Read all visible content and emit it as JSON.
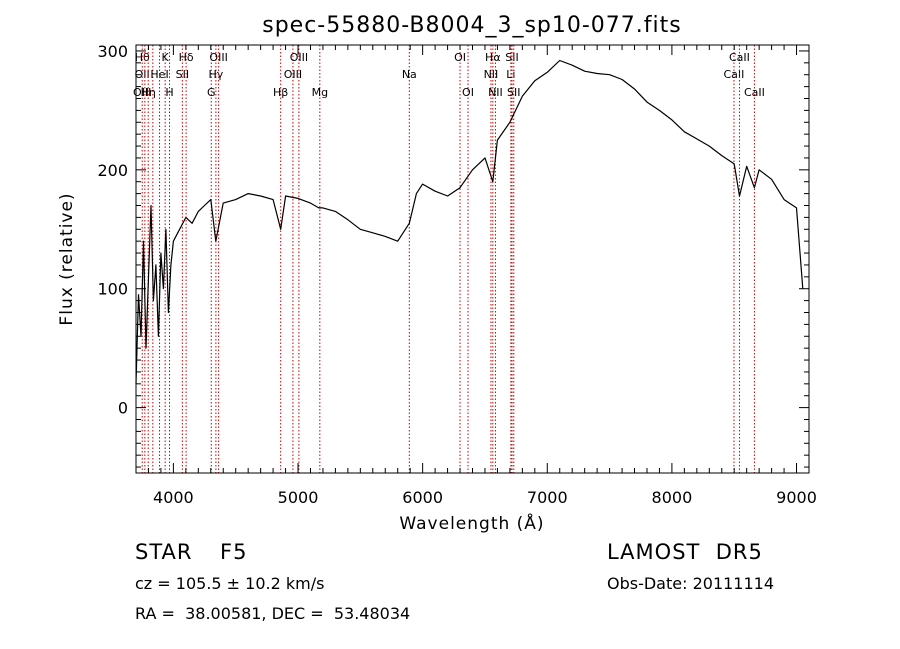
{
  "chart_data": {
    "type": "line",
    "title": "spec-55880-B8004_3_sp10-077.fits",
    "xlabel": "Wavelength (Å)",
    "ylabel": "Flux (relative)",
    "xlim": [
      3700,
      9100
    ],
    "ylim": [
      -55,
      305
    ],
    "xticks": [
      4000,
      5000,
      6000,
      7000,
      8000,
      9000
    ],
    "yticks": [
      0,
      100,
      200,
      300
    ],
    "grid": false,
    "line_color": "#000000",
    "marker_color": "#cc0000",
    "series": [
      {
        "x": [
          3700,
          3720,
          3740,
          3760,
          3780,
          3800,
          3820,
          3840,
          3860,
          3880,
          3900,
          3920,
          3940,
          3960,
          3980,
          4000,
          4050,
          4100,
          4150,
          4200,
          4250,
          4300,
          4340,
          4400,
          4500,
          4600,
          4700,
          4800,
          4861,
          4900,
          5000,
          5100,
          5167,
          5200,
          5300,
          5400,
          5500,
          5600,
          5700,
          5800,
          5893,
          5950,
          6000,
          6100,
          6200,
          6300,
          6400,
          6500,
          6563,
          6600,
          6700,
          6800,
          6900,
          7000,
          7100,
          7200,
          7300,
          7400,
          7500,
          7600,
          7700,
          7800,
          7900,
          8000,
          8100,
          8200,
          8300,
          8400,
          8500,
          8542,
          8600,
          8662,
          8700,
          8800,
          8900,
          9000,
          9050
        ],
        "y": [
          20,
          95,
          60,
          140,
          50,
          110,
          170,
          90,
          120,
          60,
          130,
          100,
          150,
          80,
          120,
          140,
          150,
          160,
          155,
          165,
          170,
          175,
          140,
          172,
          175,
          180,
          178,
          175,
          150,
          178,
          176,
          172,
          168,
          168,
          165,
          158,
          150,
          147,
          144,
          140,
          155,
          180,
          188,
          182,
          178,
          185,
          200,
          210,
          190,
          225,
          240,
          262,
          275,
          282,
          292,
          288,
          283,
          281,
          280,
          276,
          268,
          257,
          250,
          242,
          232,
          226,
          220,
          212,
          205,
          178,
          203,
          185,
          200,
          192,
          175,
          168,
          100
        ]
      }
    ],
    "line_markers": [
      {
        "w": 3750,
        "labels": [
          {
            "t": "Hθ",
            "row": 0
          },
          {
            "t": "OII",
            "row": 1
          },
          {
            "t": "OIII",
            "row": 2
          }
        ]
      },
      {
        "w": 3771,
        "labels": []
      },
      {
        "w": 3798,
        "labels": [
          {
            "t": "Hη",
            "row": 2
          }
        ]
      },
      {
        "w": 3835,
        "labels": []
      },
      {
        "w": 3889,
        "labels": [
          {
            "t": "HeI",
            "row": 1
          }
        ]
      },
      {
        "w": 3934,
        "labels": [
          {
            "t": "K",
            "row": 0
          }
        ]
      },
      {
        "w": 3969,
        "labels": [
          {
            "t": "H",
            "row": 2
          }
        ]
      },
      {
        "w": 4072,
        "labels": [
          {
            "t": "SII",
            "row": 1
          }
        ]
      },
      {
        "w": 4102,
        "labels": [
          {
            "t": "Hδ",
            "row": 0
          }
        ]
      },
      {
        "w": 4304,
        "labels": [
          {
            "t": "G",
            "row": 2
          }
        ]
      },
      {
        "w": 4341,
        "labels": [
          {
            "t": "Hγ",
            "row": 1
          }
        ]
      },
      {
        "w": 4363,
        "labels": [
          {
            "t": "OIII",
            "row": 0
          }
        ]
      },
      {
        "w": 4861,
        "labels": [
          {
            "t": "Hβ",
            "row": 2
          }
        ]
      },
      {
        "w": 4959,
        "labels": [
          {
            "t": "OIII",
            "row": 1
          }
        ]
      },
      {
        "w": 5007,
        "labels": [
          {
            "t": "OIII",
            "row": 0
          }
        ]
      },
      {
        "w": 5175,
        "labels": [
          {
            "t": "Mg",
            "row": 2
          }
        ]
      },
      {
        "w": 5893,
        "labels": [
          {
            "t": "Na",
            "row": 1
          }
        ]
      },
      {
        "w": 6300,
        "labels": [
          {
            "t": "OI",
            "row": 0
          }
        ]
      },
      {
        "w": 6364,
        "labels": [
          {
            "t": "OI",
            "row": 2
          }
        ]
      },
      {
        "w": 6548,
        "labels": [
          {
            "t": "NII",
            "row": 1
          }
        ]
      },
      {
        "w": 6563,
        "labels": [
          {
            "t": "Hα",
            "row": 0
          }
        ]
      },
      {
        "w": 6584,
        "labels": [
          {
            "t": "NII",
            "row": 2
          }
        ]
      },
      {
        "w": 6708,
        "labels": [
          {
            "t": "Li",
            "row": 1
          }
        ]
      },
      {
        "w": 6717,
        "labels": [
          {
            "t": "SII",
            "row": 0
          }
        ]
      },
      {
        "w": 6731,
        "labels": [
          {
            "t": "SII",
            "row": 2
          }
        ]
      },
      {
        "w": 8498,
        "labels": [
          {
            "t": "CaII",
            "row": 1
          }
        ]
      },
      {
        "w": 8542,
        "labels": [
          {
            "t": "CaII",
            "row": 0
          }
        ]
      },
      {
        "w": 8662,
        "labels": [
          {
            "t": "CaII",
            "row": 2
          }
        ]
      }
    ]
  },
  "info": {
    "object_class": "STAR",
    "subclass": "F5",
    "survey": "LAMOST  DR5",
    "cz": "cz = 105.5 ± 10.2 km/s",
    "obs_date": "Obs-Date: 20111114",
    "coords": "RA =  38.00581, DEC =  53.48034"
  }
}
